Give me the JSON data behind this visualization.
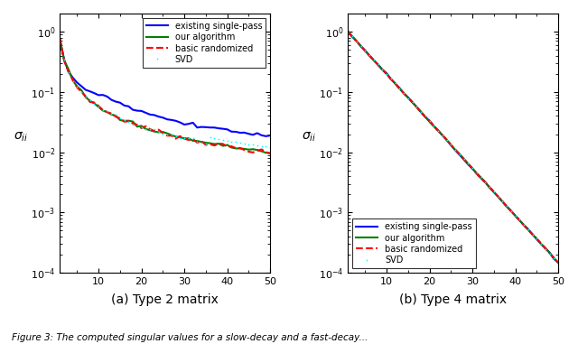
{
  "subplot_titles": [
    "(a) Type 2 matrix",
    "(b) Type 4 matrix"
  ],
  "xlim": [
    1,
    50
  ],
  "ylim": [
    0.0001,
    2.0
  ],
  "xticks": [
    10,
    20,
    30,
    40,
    50
  ],
  "legend_labels": [
    "existing single-pass",
    "our algorithm",
    "basic randomized",
    "SVD"
  ],
  "ylabel": "σ_{ii}",
  "n_points": 50,
  "background_color": "white",
  "figsize": [
    6.4,
    3.81
  ],
  "dpi": 100,
  "caption": "Figure 3: The computed singular values for a slow-decay and a fast-decay..."
}
